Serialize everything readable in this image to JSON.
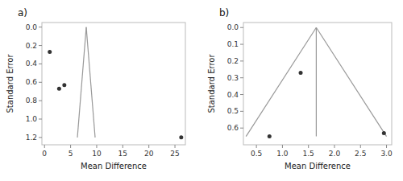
{
  "chart_data": [
    {
      "type": "scatter",
      "title": "a)",
      "x": [
        1.0,
        2.8,
        3.8,
        26.2
      ],
      "values": [
        0.27,
        0.67,
        0.63,
        1.2
      ],
      "color": "#333333",
      "funnel": {
        "apex_x": 8.0,
        "apex_y": 0.0,
        "base_y": 1.2,
        "left_x": 6.3,
        "right_x": 9.7,
        "center_line": false,
        "color": "#999999"
      },
      "xlim": [
        -0.5,
        27
      ],
      "ylim": [
        1.28,
        -0.05
      ],
      "xticks": [
        0,
        5,
        10,
        15,
        20,
        25
      ],
      "yticks": [
        {
          "value": 0.0,
          "label": "0.0"
        },
        0.2,
        0.4,
        0.6,
        0.8,
        {
          "value": 1.0,
          "label": "1.0"
        },
        1.2
      ],
      "xlabel": "Mean Difference",
      "ylabel": "Standard Error",
      "grid": false
    },
    {
      "type": "scatter",
      "title": "b)",
      "x": [
        0.75,
        1.35,
        2.95
      ],
      "values": [
        0.65,
        0.27,
        0.63
      ],
      "color": "#333333",
      "funnel": {
        "apex_x": 1.65,
        "apex_y": 0.0,
        "base_y": 0.65,
        "left_x": 0.3,
        "right_x": 3.0,
        "center_line": true,
        "color": "#999999"
      },
      "xlim": [
        0.25,
        3.1
      ],
      "ylim": [
        0.7,
        -0.03
      ],
      "xticks": [
        0.5,
        {
          "value": 1.0,
          "label": "1.0"
        },
        1.5,
        {
          "value": 2.0,
          "label": "2.0"
        },
        2.5,
        {
          "value": 3.0,
          "label": "3.0"
        }
      ],
      "yticks": [
        {
          "value": 0.0,
          "label": "0.0"
        },
        0.1,
        0.2,
        0.3,
        0.4,
        0.5,
        0.6
      ],
      "xlabel": "Mean Difference",
      "ylabel": "Standard Error",
      "grid": false
    }
  ]
}
